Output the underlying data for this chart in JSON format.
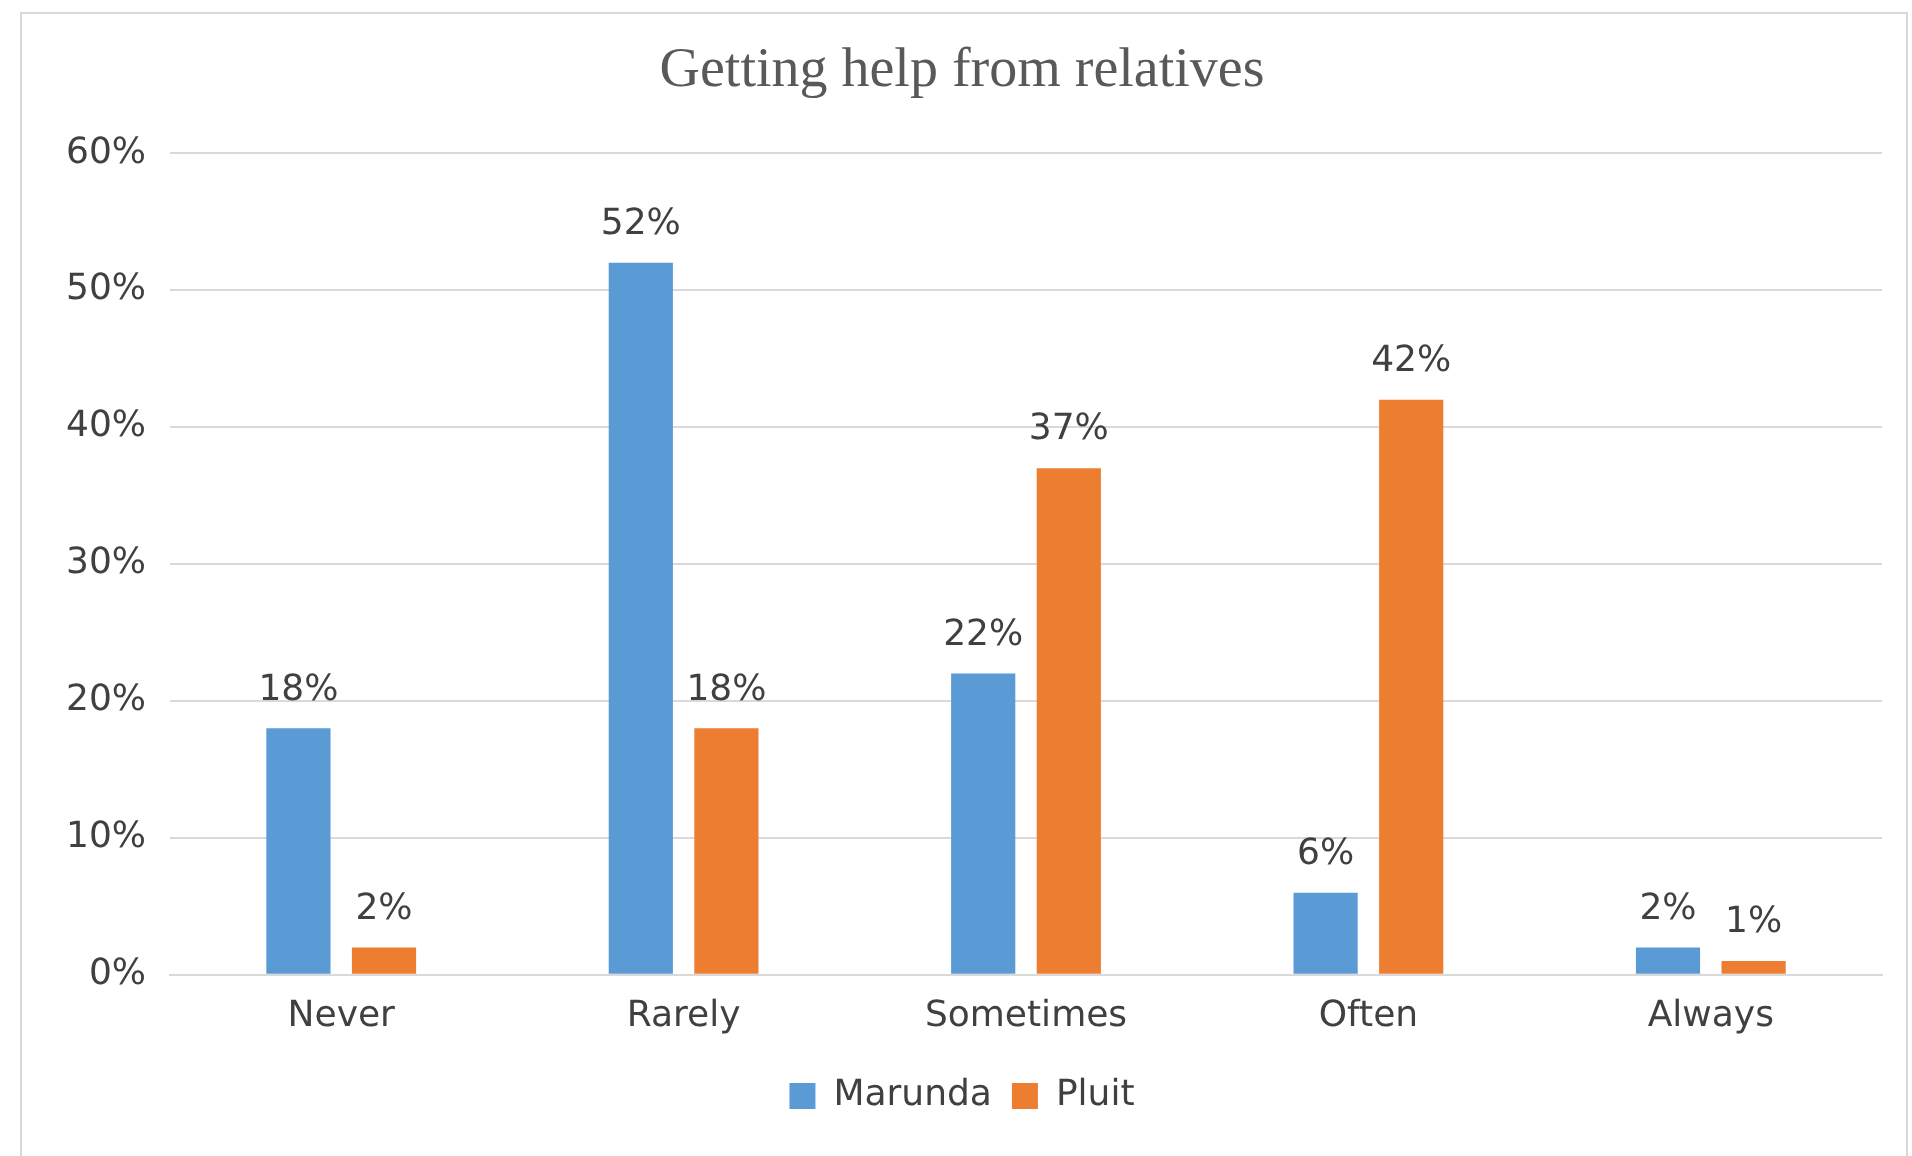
{
  "chart_data": {
    "type": "bar",
    "title": "Getting help from relatives",
    "categories": [
      "Never",
      "Rarely",
      "Sometimes",
      "Often",
      "Always"
    ],
    "series": [
      {
        "name": "Marunda",
        "color": "#5b9bd5",
        "values": [
          18,
          52,
          22,
          6,
          2
        ]
      },
      {
        "name": "Pluit",
        "color": "#ed7d31",
        "values": [
          2,
          18,
          37,
          42,
          1
        ]
      }
    ],
    "ylim": [
      0,
      60
    ],
    "yticks": [
      {
        "value": 0,
        "label": "0%"
      },
      {
        "value": 10,
        "label": "10%"
      },
      {
        "value": 20,
        "label": "20%"
      },
      {
        "value": 30,
        "label": "30%"
      },
      {
        "value": 40,
        "label": "40%"
      },
      {
        "value": 50,
        "label": "50%"
      },
      {
        "value": 60,
        "label": "60%"
      }
    ],
    "value_labels": [
      [
        "18%",
        "52%",
        "22%",
        "6%",
        "2%"
      ],
      [
        "2%",
        "18%",
        "37%",
        "42%",
        "1%"
      ]
    ],
    "grid": "y",
    "legend": "bottom"
  }
}
